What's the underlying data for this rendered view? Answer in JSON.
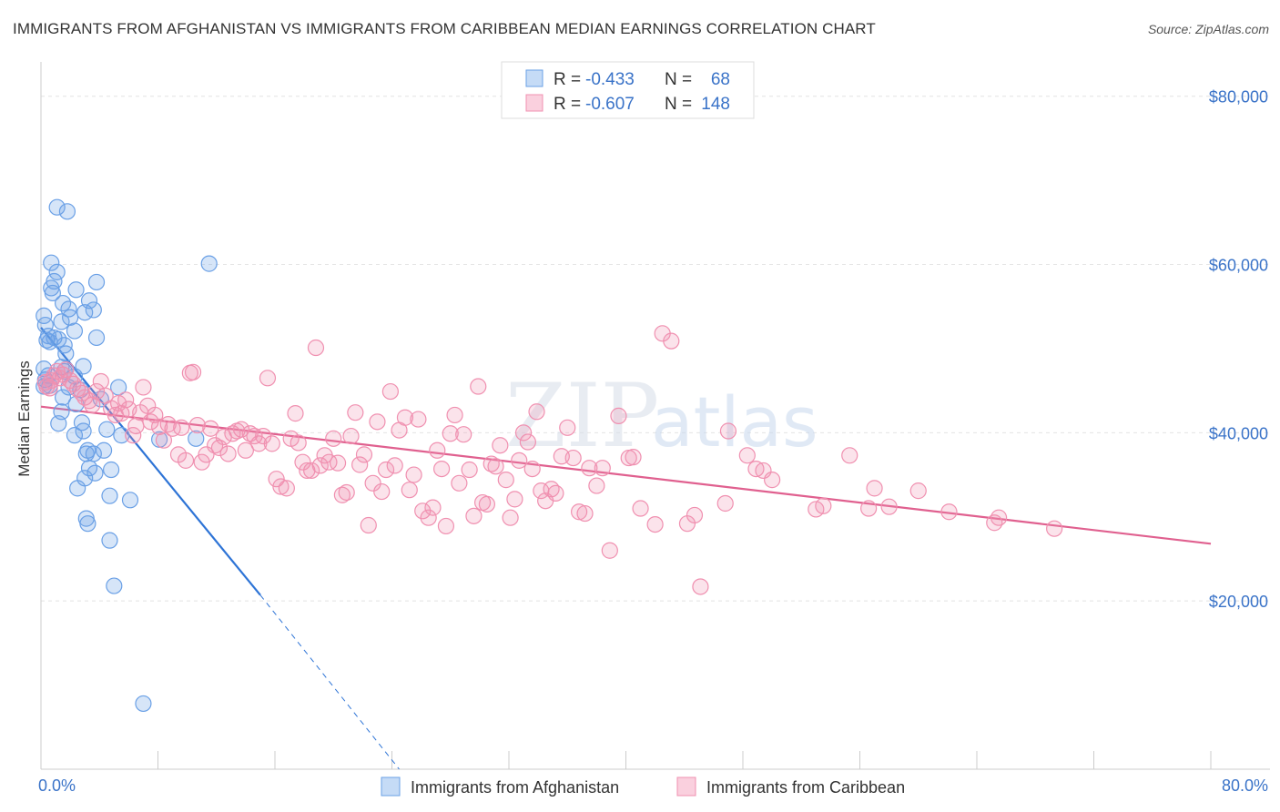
{
  "title": "IMMIGRANTS FROM AFGHANISTAN VS IMMIGRANTS FROM CARIBBEAN MEDIAN EARNINGS CORRELATION CHART",
  "source": "Source: ZipAtlas.com",
  "watermark": {
    "zip": "ZIP",
    "atlas": "atlas"
  },
  "legend": [
    {
      "r_label": "R =",
      "r_value": "-0.433",
      "n_label": "N =",
      "n_value": "68",
      "color": "#6aa0e6"
    },
    {
      "r_label": "R =",
      "r_value": "-0.607",
      "n_label": "N =",
      "n_value": "148",
      "color": "#f090b0"
    }
  ],
  "chart_data": {
    "type": "scatter",
    "title": "IMMIGRANTS FROM AFGHANISTAN VS IMMIGRANTS FROM CARIBBEAN MEDIAN EARNINGS CORRELATION CHART",
    "xlabel": "",
    "ylabel": "Median Earnings",
    "xlim": [
      0,
      80
    ],
    "ylim": [
      0,
      83000
    ],
    "x_tick_labels": [
      "0.0%",
      "80.0%"
    ],
    "y_ticks": [
      20000,
      40000,
      60000,
      80000
    ],
    "y_tick_labels": [
      "$20,000",
      "$40,000",
      "$60,000",
      "$80,000"
    ],
    "grid": true,
    "series": [
      {
        "name": "Immigrants from Afghanistan",
        "color": "#6aa0e6",
        "trend": {
          "x0": 0,
          "y0": 52500,
          "x1": 15,
          "y1": 20700,
          "dash_to_x": 24.5,
          "dash_to_y": 0
        },
        "points": [
          [
            1.1,
            66800
          ],
          [
            1.8,
            66300
          ],
          [
            0.7,
            60200
          ],
          [
            11.5,
            60100
          ],
          [
            1.1,
            59100
          ],
          [
            0.9,
            58000
          ],
          [
            3.8,
            57900
          ],
          [
            0.7,
            57200
          ],
          [
            2.4,
            57000
          ],
          [
            0.8,
            56600
          ],
          [
            3.3,
            55700
          ],
          [
            1.5,
            55400
          ],
          [
            1.9,
            54700
          ],
          [
            3.6,
            54600
          ],
          [
            3.0,
            54300
          ],
          [
            0.2,
            53900
          ],
          [
            2.0,
            53700
          ],
          [
            1.4,
            53200
          ],
          [
            0.3,
            52800
          ],
          [
            2.3,
            52100
          ],
          [
            0.5,
            51500
          ],
          [
            0.9,
            51300
          ],
          [
            3.8,
            51300
          ],
          [
            1.2,
            51100
          ],
          [
            0.4,
            51000
          ],
          [
            0.6,
            50800
          ],
          [
            1.6,
            50400
          ],
          [
            1.7,
            49400
          ],
          [
            0.2,
            47600
          ],
          [
            1.4,
            47800
          ],
          [
            2.9,
            47900
          ],
          [
            1.6,
            47300
          ],
          [
            0.5,
            46800
          ],
          [
            2.3,
            46700
          ],
          [
            0.3,
            46300
          ],
          [
            0.6,
            45600
          ],
          [
            0.2,
            45500
          ],
          [
            1.9,
            45400
          ],
          [
            5.3,
            45400
          ],
          [
            2.7,
            45100
          ],
          [
            1.5,
            44200
          ],
          [
            4.1,
            44000
          ],
          [
            2.4,
            43400
          ],
          [
            1.4,
            42500
          ],
          [
            1.2,
            41100
          ],
          [
            2.8,
            41200
          ],
          [
            2.9,
            40200
          ],
          [
            4.5,
            40400
          ],
          [
            2.3,
            39700
          ],
          [
            5.5,
            39700
          ],
          [
            10.6,
            39300
          ],
          [
            8.1,
            39200
          ],
          [
            3.2,
            37900
          ],
          [
            4.3,
            37900
          ],
          [
            3.1,
            37500
          ],
          [
            3.6,
            37500
          ],
          [
            3.3,
            35800
          ],
          [
            4.8,
            35600
          ],
          [
            3.7,
            35200
          ],
          [
            3.0,
            34600
          ],
          [
            2.5,
            33400
          ],
          [
            4.7,
            32500
          ],
          [
            6.1,
            32000
          ],
          [
            3.1,
            29800
          ],
          [
            3.2,
            29200
          ],
          [
            4.7,
            27200
          ],
          [
            5.0,
            21800
          ],
          [
            7.0,
            7800
          ]
        ]
      },
      {
        "name": "Immigrants from Caribbean",
        "color": "#f090b0",
        "trend": {
          "x0": 0,
          "y0": 43100,
          "x1": 80,
          "y1": 26800
        },
        "points": [
          [
            0.3,
            46000
          ],
          [
            0.4,
            45500
          ],
          [
            0.6,
            45300
          ],
          [
            0.7,
            46200
          ],
          [
            0.9,
            46800
          ],
          [
            1.1,
            47300
          ],
          [
            1.3,
            46500
          ],
          [
            1.5,
            46900
          ],
          [
            1.7,
            47500
          ],
          [
            2.0,
            46200
          ],
          [
            2.2,
            45800
          ],
          [
            2.5,
            45200
          ],
          [
            2.8,
            44700
          ],
          [
            3.0,
            44200
          ],
          [
            3.3,
            43800
          ],
          [
            3.5,
            43300
          ],
          [
            3.8,
            44900
          ],
          [
            4.1,
            46100
          ],
          [
            4.4,
            44400
          ],
          [
            4.8,
            42900
          ],
          [
            5.1,
            42100
          ],
          [
            5.3,
            43500
          ],
          [
            5.5,
            42300
          ],
          [
            5.8,
            43900
          ],
          [
            6.0,
            42800
          ],
          [
            6.3,
            39700
          ],
          [
            6.5,
            40800
          ],
          [
            6.8,
            42400
          ],
          [
            7.0,
            45400
          ],
          [
            7.3,
            43200
          ],
          [
            7.5,
            41300
          ],
          [
            7.8,
            42100
          ],
          [
            8.1,
            40700
          ],
          [
            8.4,
            39100
          ],
          [
            8.7,
            41000
          ],
          [
            9.0,
            40500
          ],
          [
            9.4,
            37400
          ],
          [
            9.6,
            40600
          ],
          [
            9.9,
            36700
          ],
          [
            10.2,
            47100
          ],
          [
            10.4,
            47200
          ],
          [
            10.7,
            40900
          ],
          [
            11.0,
            36500
          ],
          [
            11.3,
            37400
          ],
          [
            11.6,
            40500
          ],
          [
            11.9,
            38500
          ],
          [
            12.2,
            38200
          ],
          [
            12.5,
            39500
          ],
          [
            12.8,
            37500
          ],
          [
            13.1,
            39900
          ],
          [
            13.4,
            40200
          ],
          [
            13.7,
            40400
          ],
          [
            14.0,
            37900
          ],
          [
            14.3,
            39900
          ],
          [
            14.6,
            39600
          ],
          [
            14.9,
            38700
          ],
          [
            15.2,
            39600
          ],
          [
            15.5,
            46500
          ],
          [
            15.8,
            38700
          ],
          [
            16.1,
            34500
          ],
          [
            16.4,
            33600
          ],
          [
            16.8,
            33400
          ],
          [
            17.1,
            39300
          ],
          [
            17.4,
            42300
          ],
          [
            17.6,
            38800
          ],
          [
            17.9,
            36500
          ],
          [
            18.2,
            35500
          ],
          [
            18.5,
            35500
          ],
          [
            18.8,
            50100
          ],
          [
            19.1,
            36100
          ],
          [
            19.4,
            37300
          ],
          [
            19.7,
            36500
          ],
          [
            20.0,
            39300
          ],
          [
            20.3,
            36400
          ],
          [
            20.6,
            32600
          ],
          [
            20.9,
            32900
          ],
          [
            21.2,
            39600
          ],
          [
            21.5,
            42400
          ],
          [
            21.8,
            36200
          ],
          [
            22.1,
            37400
          ],
          [
            22.4,
            29000
          ],
          [
            22.7,
            34000
          ],
          [
            23.0,
            41300
          ],
          [
            23.3,
            33000
          ],
          [
            23.6,
            35600
          ],
          [
            23.9,
            44900
          ],
          [
            24.2,
            36100
          ],
          [
            24.5,
            40300
          ],
          [
            24.9,
            41800
          ],
          [
            25.2,
            33200
          ],
          [
            25.5,
            35000
          ],
          [
            25.8,
            41600
          ],
          [
            26.1,
            30700
          ],
          [
            26.5,
            29900
          ],
          [
            26.8,
            31100
          ],
          [
            27.1,
            37900
          ],
          [
            27.4,
            35700
          ],
          [
            27.7,
            28900
          ],
          [
            28.0,
            39900
          ],
          [
            28.3,
            42100
          ],
          [
            28.6,
            34000
          ],
          [
            28.9,
            39800
          ],
          [
            29.3,
            35600
          ],
          [
            29.6,
            30100
          ],
          [
            29.9,
            45500
          ],
          [
            30.2,
            31700
          ],
          [
            30.5,
            31500
          ],
          [
            30.8,
            36300
          ],
          [
            31.1,
            36000
          ],
          [
            31.4,
            38500
          ],
          [
            31.8,
            34400
          ],
          [
            32.1,
            29900
          ],
          [
            32.4,
            32100
          ],
          [
            32.7,
            36700
          ],
          [
            33.0,
            40000
          ],
          [
            33.3,
            38900
          ],
          [
            33.6,
            35700
          ],
          [
            33.9,
            42500
          ],
          [
            34.2,
            33100
          ],
          [
            34.5,
            31900
          ],
          [
            34.9,
            33300
          ],
          [
            35.2,
            32800
          ],
          [
            35.6,
            37200
          ],
          [
            36.0,
            40600
          ],
          [
            36.4,
            37000
          ],
          [
            36.8,
            30600
          ],
          [
            37.2,
            30400
          ],
          [
            37.5,
            35800
          ],
          [
            38.0,
            33700
          ],
          [
            38.4,
            35800
          ],
          [
            38.9,
            26000
          ],
          [
            39.5,
            42000
          ],
          [
            40.2,
            37000
          ],
          [
            40.5,
            37100
          ],
          [
            41.0,
            31000
          ],
          [
            42.0,
            29100
          ],
          [
            42.5,
            51800
          ],
          [
            43.1,
            50900
          ],
          [
            44.2,
            29200
          ],
          [
            44.7,
            30200
          ],
          [
            45.1,
            21700
          ],
          [
            46.8,
            31600
          ],
          [
            47.0,
            40200
          ],
          [
            48.3,
            37300
          ],
          [
            48.9,
            35700
          ],
          [
            49.4,
            35500
          ],
          [
            50.0,
            34400
          ],
          [
            53.0,
            30900
          ],
          [
            53.5,
            31300
          ],
          [
            55.3,
            37300
          ],
          [
            56.6,
            31000
          ],
          [
            57.0,
            33400
          ],
          [
            58.0,
            31200
          ],
          [
            60.0,
            33100
          ],
          [
            62.1,
            30600
          ],
          [
            65.2,
            29300
          ],
          [
            65.5,
            29900
          ],
          [
            69.3,
            28600
          ]
        ]
      }
    ]
  },
  "bottom_legend": [
    {
      "label": "Immigrants from Afghanistan",
      "color": "#6aa0e6"
    },
    {
      "label": "Immigrants from Caribbean",
      "color": "#f090b0"
    }
  ]
}
